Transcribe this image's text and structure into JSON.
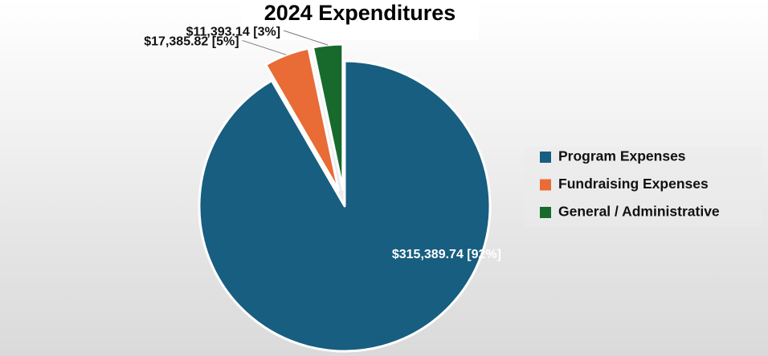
{
  "chart_data": {
    "type": "pie",
    "title": "2024 Expenditures",
    "categories": [
      "Program Expenses",
      "Fundraising Expenses",
      "General / Administrative"
    ],
    "values": [
      315389.74,
      17385.82,
      11393.14
    ],
    "percents": [
      92,
      5,
      3
    ],
    "data_labels": [
      "$315,389.74 [92%]",
      "$17,385.82 [5%]",
      "$11,393.14 [3%]"
    ],
    "colors": [
      "#175e80",
      "#e96b35",
      "#176a2c"
    ],
    "exploded": [
      false,
      true,
      true
    ],
    "legend_position": "right"
  }
}
